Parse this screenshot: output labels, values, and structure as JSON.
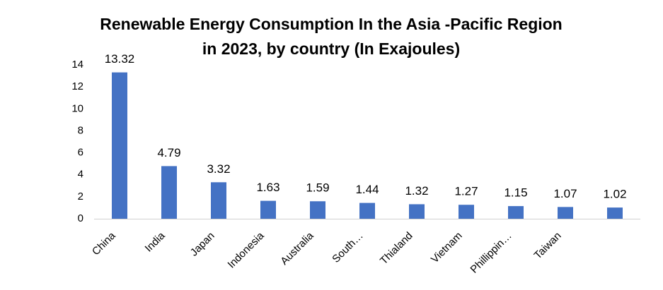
{
  "chart_data": {
    "type": "bar",
    "title": [
      "Renewable Energy Consumption In the Asia -Pacific Region",
      "in 2023, by country (In Exajoules)"
    ],
    "categories": [
      "China",
      "India",
      "Japan",
      "Indonesia",
      "Australia",
      "South…",
      "Thialand",
      "Vietnam",
      "Phillippin…",
      "Taiwan",
      null
    ],
    "values": [
      13.32,
      4.79,
      3.32,
      1.63,
      1.59,
      1.44,
      1.32,
      1.27,
      1.15,
      1.07,
      1.02
    ],
    "color": "#4472c4",
    "ylim": [
      0,
      14
    ],
    "yticks": [
      0,
      2,
      4,
      6,
      8,
      10,
      12,
      14
    ],
    "grid": false
  }
}
